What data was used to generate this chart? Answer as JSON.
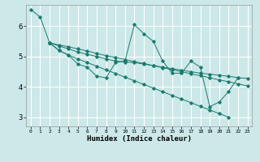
{
  "xlabel": "Humidex (Indice chaleur)",
  "bg_color": "#cce8e8",
  "grid_color": "#ffffff",
  "line_color": "#1a7a6e",
  "xlim": [
    -0.5,
    23.5
  ],
  "ylim": [
    2.7,
    6.7
  ],
  "yticks": [
    3,
    4,
    5,
    6
  ],
  "xticks": [
    0,
    1,
    2,
    3,
    4,
    5,
    6,
    7,
    8,
    9,
    10,
    11,
    12,
    13,
    14,
    15,
    16,
    17,
    18,
    19,
    20,
    21,
    22,
    23
  ],
  "series": [
    [
      6.55,
      6.3,
      5.45,
      5.2,
      5.05,
      4.75,
      4.65,
      4.35,
      4.3,
      4.8,
      4.85,
      6.05,
      5.75,
      5.5,
      4.85,
      4.45,
      4.45,
      4.85,
      4.65,
      3.35,
      3.5,
      3.85,
      4.3,
      null
    ],
    [
      null,
      null,
      5.45,
      5.35,
      5.25,
      5.15,
      5.07,
      5.0,
      4.92,
      4.85,
      4.82,
      4.8,
      4.75,
      4.7,
      4.65,
      4.6,
      4.55,
      4.5,
      4.45,
      4.42,
      4.38,
      4.35,
      4.3,
      4.28
    ],
    [
      null,
      null,
      5.45,
      5.38,
      5.32,
      5.25,
      5.18,
      5.1,
      5.03,
      4.97,
      4.9,
      4.83,
      4.77,
      4.7,
      4.63,
      4.57,
      4.5,
      4.43,
      4.37,
      4.3,
      4.23,
      4.17,
      4.1,
      4.03
    ],
    [
      null,
      null,
      5.45,
      5.2,
      5.05,
      4.92,
      4.8,
      4.68,
      4.56,
      4.44,
      4.32,
      4.2,
      4.08,
      3.96,
      3.84,
      3.72,
      3.6,
      3.48,
      3.36,
      3.24,
      3.12,
      3.0,
      null,
      null
    ]
  ]
}
